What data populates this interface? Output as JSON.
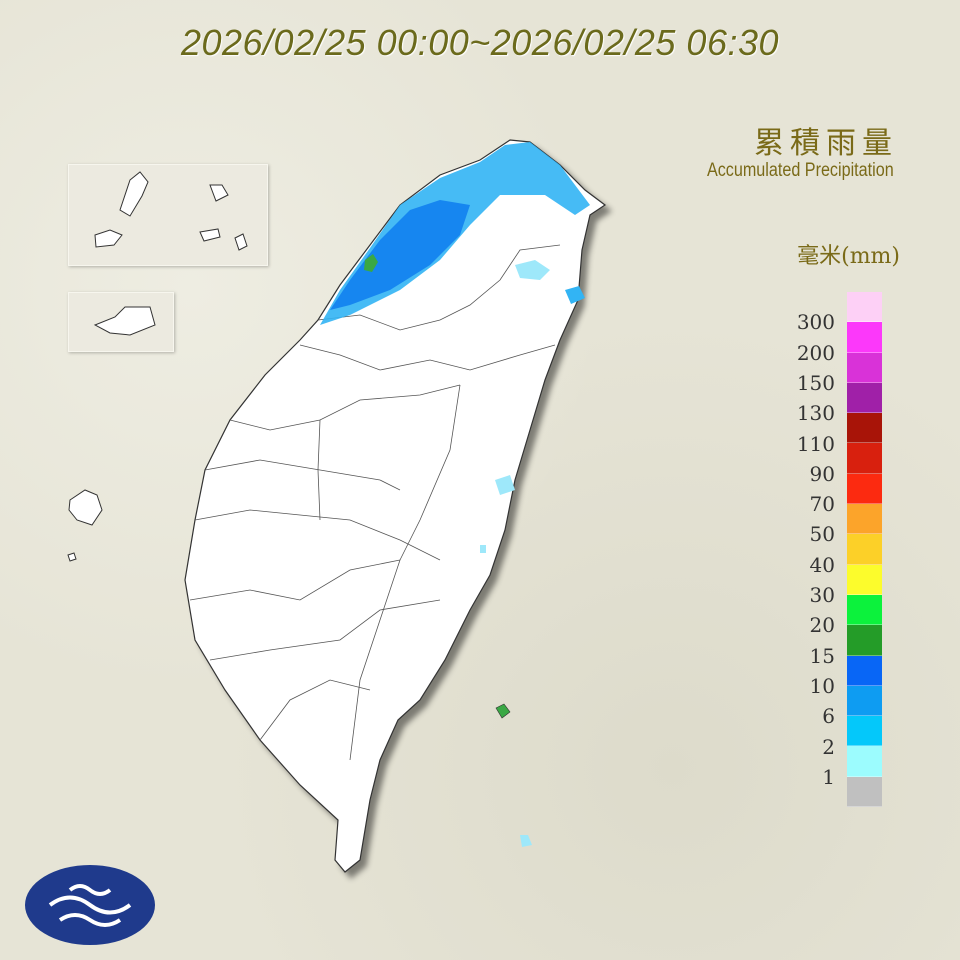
{
  "header": {
    "time_range": "2026/02/25 00:00~2026/02/25 06:30"
  },
  "legend": {
    "title_zh": "累積雨量",
    "title_en": "Accumulated Precipitation",
    "unit": "毫米(mm)",
    "labels": [
      "300",
      "200",
      "150",
      "130",
      "110",
      "90",
      "70",
      "50",
      "40",
      "30",
      "20",
      "15",
      "10",
      "6",
      "2",
      "1"
    ],
    "colors": [
      "#fdd0f6",
      "#fc38fa",
      "#d932d8",
      "#a020a8",
      "#a81408",
      "#d8200e",
      "#fc2a10",
      "#fca42a",
      "#fcd028",
      "#fcfc2c",
      "#0cf23c",
      "#249c28",
      "#0866f6",
      "#0e9cf2",
      "#04c8fa",
      "#9cfcfe",
      "#c0c0c0"
    ]
  },
  "map": {
    "rain_colors": {
      "light": "#9ee8fa",
      "medium": "#32b4f4",
      "heavy": "#0e7cee",
      "very_heavy": "#1464e8",
      "green": "#3aa844"
    }
  }
}
